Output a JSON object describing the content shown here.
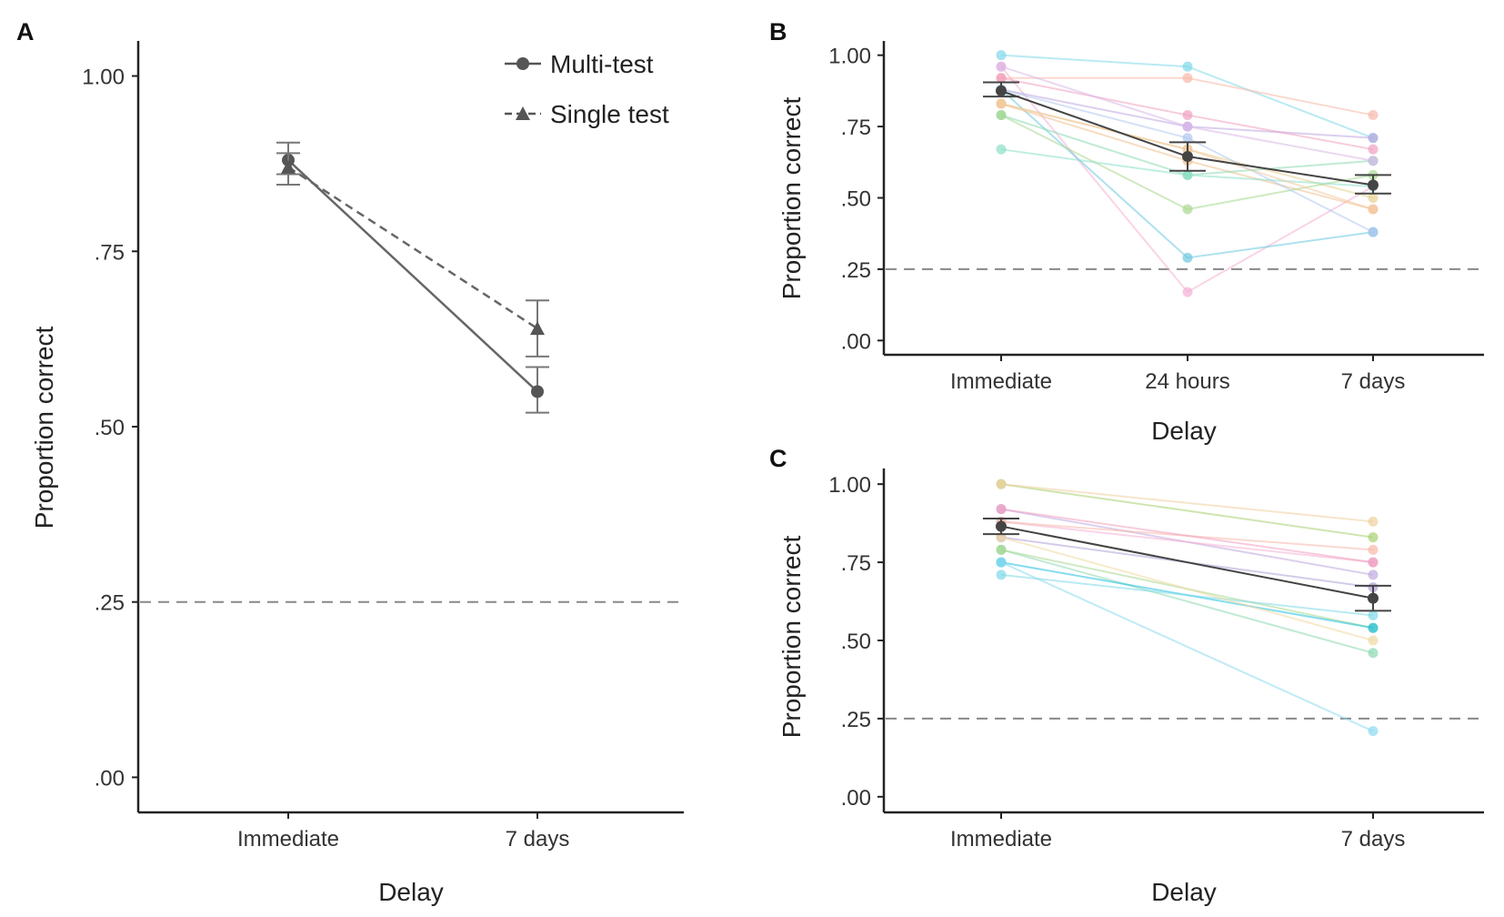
{
  "chart_data": [
    {
      "panel": "A",
      "type": "line",
      "categories": [
        "Immediate",
        "7 days"
      ],
      "xlabel": "Delay",
      "ylabel": "Proportion correct",
      "ylim": [
        0,
        1.05
      ],
      "yticks": [
        0,
        0.25,
        0.5,
        0.75,
        1.0
      ],
      "ytick_labels": [
        ".00",
        ".25",
        ".50",
        ".75",
        "1.00"
      ],
      "chance_level": 0.25,
      "legend_placement": "top-right",
      "grid": false,
      "series": [
        {
          "name": "Multi-test",
          "marker": "circle",
          "dash": "solid",
          "color": "#666666",
          "values": [
            0.88,
            0.55
          ],
          "error_lower": [
            0.86,
            0.52
          ],
          "error_upper": [
            0.905,
            0.585
          ]
        },
        {
          "name": "Single test",
          "marker": "triangle",
          "dash": "dashed",
          "color": "#666666",
          "values": [
            0.87,
            0.64
          ],
          "error_lower": [
            0.845,
            0.6
          ],
          "error_upper": [
            0.89,
            0.68
          ]
        }
      ]
    },
    {
      "panel": "B",
      "type": "line",
      "categories": [
        "Immediate",
        "24 hours",
        "7 days"
      ],
      "xlabel": "Delay",
      "ylabel": "Proportion correct",
      "ylim": [
        -0.03,
        1.05
      ],
      "yticks": [
        0,
        0.25,
        0.5,
        0.75,
        1.0
      ],
      "ytick_labels": [
        ".00",
        ".25",
        ".50",
        ".75",
        "1.00"
      ],
      "chance_level": 0.25,
      "grid": false,
      "mean": {
        "values": [
          0.875,
          0.645,
          0.545
        ],
        "error_lower": [
          0.855,
          0.595,
          0.515
        ],
        "error_upper": [
          0.905,
          0.695,
          0.58
        ],
        "color": "#444444"
      },
      "participants": [
        {
          "color": "#7fd8e8",
          "values": [
            1.0,
            0.96,
            0.71
          ]
        },
        {
          "color": "#f4b0d4",
          "values": [
            0.96,
            0.17,
            0.54
          ]
        },
        {
          "color": "#f8b8a8",
          "values": [
            0.92,
            0.92,
            0.79
          ]
        },
        {
          "color": "#c0a8e0",
          "values": [
            0.88,
            0.75,
            0.71
          ]
        },
        {
          "color": "#6cc8e0",
          "values": [
            0.88,
            0.29,
            0.38
          ]
        },
        {
          "color": "#f0c090",
          "values": [
            0.83,
            0.63,
            0.46
          ]
        },
        {
          "color": "#e8d090",
          "values": [
            0.83,
            0.67,
            0.5
          ]
        },
        {
          "color": "#8cd8b0",
          "values": [
            0.79,
            0.58,
            0.63
          ]
        },
        {
          "color": "#a8d890",
          "values": [
            0.79,
            0.46,
            0.58
          ]
        },
        {
          "color": "#8ce0c8",
          "values": [
            0.67,
            0.58,
            0.54
          ]
        },
        {
          "color": "#b0c8f0",
          "values": [
            0.88,
            0.71,
            0.38
          ]
        },
        {
          "color": "#f0a0c0",
          "values": [
            0.92,
            0.79,
            0.67
          ]
        },
        {
          "color": "#d8b8e8",
          "values": [
            0.96,
            0.75,
            0.63
          ]
        },
        {
          "color": "#f4c8a0",
          "values": [
            0.83,
            0.67,
            0.46
          ]
        }
      ]
    },
    {
      "panel": "C",
      "type": "line",
      "categories": [
        "Immediate",
        "7 days"
      ],
      "xlabel": "Delay",
      "ylabel": "Proportion correct",
      "ylim": [
        -0.03,
        1.05
      ],
      "yticks": [
        0,
        0.25,
        0.5,
        0.75,
        1.0
      ],
      "ytick_labels": [
        ".00",
        ".25",
        ".50",
        ".75",
        "1.00"
      ],
      "chance_level": 0.25,
      "grid": false,
      "mean": {
        "values": [
          0.865,
          0.635
        ],
        "error_lower": [
          0.84,
          0.595
        ],
        "error_upper": [
          0.89,
          0.675
        ],
        "color": "#444444"
      },
      "participants": [
        {
          "color": "#a8d070",
          "values": [
            1.0,
            0.83
          ]
        },
        {
          "color": "#f0d0a0",
          "values": [
            1.0,
            0.88
          ]
        },
        {
          "color": "#c0a8e0",
          "values": [
            0.92,
            0.71
          ]
        },
        {
          "color": "#f4b0d4",
          "values": [
            0.88,
            0.75
          ]
        },
        {
          "color": "#f8b8a8",
          "values": [
            0.88,
            0.79
          ]
        },
        {
          "color": "#b0a0d8",
          "values": [
            0.83,
            0.67
          ]
        },
        {
          "color": "#8cd8b0",
          "values": [
            0.79,
            0.46
          ]
        },
        {
          "color": "#a8d890",
          "values": [
            0.79,
            0.54
          ]
        },
        {
          "color": "#20c0e0",
          "values": [
            0.75,
            0.54
          ]
        },
        {
          "color": "#8cd8f0",
          "values": [
            0.75,
            0.21
          ]
        },
        {
          "color": "#7fd8e8",
          "values": [
            0.71,
            0.58
          ]
        },
        {
          "color": "#f0d8a0",
          "values": [
            0.83,
            0.5
          ]
        },
        {
          "color": "#f0a0c0",
          "values": [
            0.92,
            0.75
          ]
        }
      ]
    }
  ]
}
